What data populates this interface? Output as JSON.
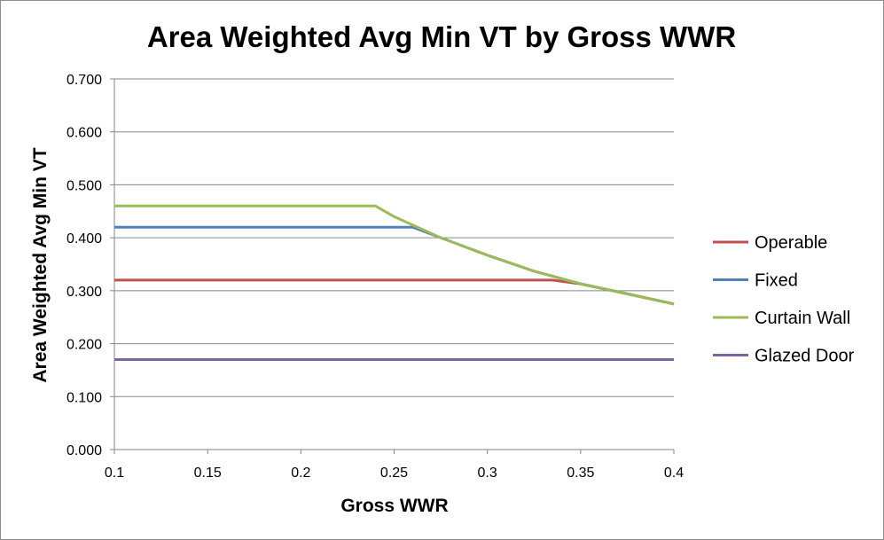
{
  "chart_data": {
    "type": "line",
    "title": "Area Weighted Avg Min VT by Gross WWR",
    "xlabel": "Gross WWR",
    "ylabel": "Area Weighted Avg Min VT",
    "xlim": [
      0.1,
      0.4
    ],
    "ylim": [
      0,
      0.7
    ],
    "x_ticks": [
      "0.1",
      "0.15",
      "0.2",
      "0.25",
      "0.3",
      "0.35",
      "0.4"
    ],
    "y_ticks": [
      "0.000",
      "0.100",
      "0.200",
      "0.300",
      "0.400",
      "0.500",
      "0.600",
      "0.700"
    ],
    "grid": "horizontal",
    "legend_position": "right",
    "series": [
      {
        "name": "Operable",
        "color": "#c0504d",
        "x": [
          0.1,
          0.15,
          0.2,
          0.25,
          0.3,
          0.335,
          0.35,
          0.375,
          0.4
        ],
        "y": [
          0.32,
          0.32,
          0.32,
          0.32,
          0.32,
          0.32,
          0.313,
          0.294,
          0.275
        ]
      },
      {
        "name": "Fixed",
        "color": "#4f81bd",
        "x": [
          0.1,
          0.15,
          0.2,
          0.25,
          0.26,
          0.275,
          0.3,
          0.325,
          0.35,
          0.375,
          0.4
        ],
        "y": [
          0.42,
          0.42,
          0.42,
          0.42,
          0.42,
          0.4,
          0.367,
          0.337,
          0.313,
          0.294,
          0.275
        ]
      },
      {
        "name": "Curtain Wall",
        "color": "#9bbb59",
        "x": [
          0.1,
          0.15,
          0.2,
          0.24,
          0.25,
          0.275,
          0.3,
          0.325,
          0.35,
          0.375,
          0.4
        ],
        "y": [
          0.46,
          0.46,
          0.46,
          0.46,
          0.44,
          0.4,
          0.367,
          0.337,
          0.313,
          0.294,
          0.275
        ]
      },
      {
        "name": "Glazed Door",
        "color": "#8064a2",
        "x": [
          0.1,
          0.4
        ],
        "y": [
          0.17,
          0.17
        ]
      }
    ]
  }
}
